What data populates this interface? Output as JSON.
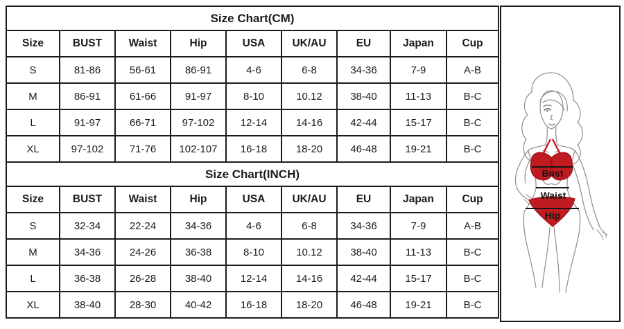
{
  "tables": [
    {
      "title": "Size Chart(CM)",
      "headers": [
        "Size",
        "BUST",
        "Waist",
        "Hip",
        "USA",
        "UK/AU",
        "EU",
        "Japan",
        "Cup"
      ],
      "rows": [
        [
          "S",
          "81-86",
          "56-61",
          "86-91",
          "4-6",
          "6-8",
          "34-36",
          "7-9",
          "A-B"
        ],
        [
          "M",
          "86-91",
          "61-66",
          "91-97",
          "8-10",
          "10.12",
          "38-40",
          "11-13",
          "B-C"
        ],
        [
          "L",
          "91-97",
          "66-71",
          "97-102",
          "12-14",
          "14-16",
          "42-44",
          "15-17",
          "B-C"
        ],
        [
          "XL",
          "97-102",
          "71-76",
          "102-107",
          "16-18",
          "18-20",
          "46-48",
          "19-21",
          "B-C"
        ]
      ]
    },
    {
      "title": "Size Chart(INCH)",
      "headers": [
        "Size",
        "BUST",
        "Waist",
        "Hip",
        "USA",
        "UK/AU",
        "EU",
        "Japan",
        "Cup"
      ],
      "rows": [
        [
          "S",
          "32-34",
          "22-24",
          "34-36",
          "4-6",
          "6-8",
          "34-36",
          "7-9",
          "A-B"
        ],
        [
          "M",
          "34-36",
          "24-26",
          "36-38",
          "8-10",
          "10.12",
          "38-40",
          "11-13",
          "B-C"
        ],
        [
          "L",
          "36-38",
          "26-28",
          "38-40",
          "12-14",
          "14-16",
          "42-44",
          "15-17",
          "B-C"
        ],
        [
          "XL",
          "38-40",
          "28-30",
          "40-42",
          "16-18",
          "18-20",
          "46-48",
          "19-21",
          "B-C"
        ]
      ]
    }
  ],
  "figure": {
    "labels": {
      "bust": "Bust",
      "waist": "Waist",
      "hip": "Hip"
    },
    "colors": {
      "bikini_red": "#bf1b21",
      "bikini_red_edge": "#9d1318",
      "outline": "#9a9294",
      "measure_line": "#161616"
    }
  }
}
